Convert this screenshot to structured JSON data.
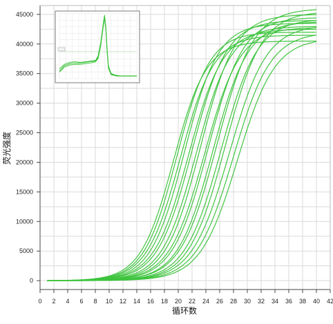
{
  "chart_data": [
    {
      "type": "line",
      "title": "",
      "xlabel": "循环数",
      "ylabel": "荧光强度",
      "xlim": [
        0,
        42
      ],
      "ylim": [
        -1500,
        46500
      ],
      "x_ticks": [
        0,
        2,
        4,
        6,
        8,
        10,
        12,
        14,
        16,
        18,
        20,
        22,
        24,
        26,
        28,
        30,
        32,
        34,
        36,
        38,
        40,
        42
      ],
      "y_ticks": [
        0,
        5000,
        10000,
        15000,
        20000,
        25000,
        30000,
        35000,
        40000,
        45000
      ],
      "grid": true,
      "legend": "none",
      "line_color": "#3fc43f",
      "x_range_of_series": [
        1,
        40
      ],
      "series": [
        {
          "midpoint": 19.3,
          "slope": 0.42,
          "plateau": 40500
        },
        {
          "midpoint": 19.8,
          "slope": 0.42,
          "plateau": 42000
        },
        {
          "midpoint": 20.3,
          "slope": 0.41,
          "plateau": 41500
        },
        {
          "midpoint": 20.9,
          "slope": 0.41,
          "plateau": 43500
        },
        {
          "midpoint": 21.5,
          "slope": 0.4,
          "plateau": 42500
        },
        {
          "midpoint": 22.0,
          "slope": 0.4,
          "plateau": 44000
        },
        {
          "midpoint": 22.6,
          "slope": 0.4,
          "plateau": 43000
        },
        {
          "midpoint": 23.2,
          "slope": 0.4,
          "plateau": 45000
        },
        {
          "midpoint": 23.8,
          "slope": 0.39,
          "plateau": 42800
        },
        {
          "midpoint": 24.3,
          "slope": 0.39,
          "plateau": 44500
        },
        {
          "midpoint": 25.0,
          "slope": 0.39,
          "plateau": 43800
        },
        {
          "midpoint": 25.6,
          "slope": 0.38,
          "plateau": 46000
        },
        {
          "midpoint": 26.2,
          "slope": 0.38,
          "plateau": 44200
        },
        {
          "midpoint": 26.8,
          "slope": 0.38,
          "plateau": 45500
        },
        {
          "midpoint": 27.4,
          "slope": 0.37,
          "plateau": 43200
        },
        {
          "midpoint": 28.0,
          "slope": 0.37,
          "plateau": 42000
        },
        {
          "midpoint": 28.6,
          "slope": 0.37,
          "plateau": 41000
        }
      ]
    },
    {
      "type": "line",
      "title": "",
      "description_of_inset": "melt curve inset",
      "grid": true,
      "line_color": "#3fc43f",
      "legend_box": true,
      "x_points": [
        0,
        4,
        8,
        12,
        16,
        20,
        24,
        28,
        30,
        32,
        34,
        35,
        36,
        37,
        38,
        40,
        44,
        48,
        52,
        56,
        60
      ],
      "series": [
        {
          "values": [
            0.15,
            0.22,
            0.25,
            0.26,
            0.25,
            0.26,
            0.27,
            0.28,
            0.35,
            0.55,
            0.85,
            0.98,
            0.8,
            0.45,
            0.2,
            0.08,
            0.05,
            0.04,
            0.04,
            0.04,
            0.04
          ]
        },
        {
          "values": [
            0.12,
            0.2,
            0.23,
            0.24,
            0.24,
            0.25,
            0.26,
            0.27,
            0.33,
            0.52,
            0.82,
            0.96,
            0.78,
            0.43,
            0.18,
            0.07,
            0.05,
            0.04,
            0.04,
            0.04,
            0.04
          ]
        },
        {
          "values": [
            0.1,
            0.18,
            0.21,
            0.22,
            0.22,
            0.23,
            0.24,
            0.26,
            0.31,
            0.5,
            0.8,
            0.94,
            0.76,
            0.4,
            0.16,
            0.06,
            0.04,
            0.04,
            0.04,
            0.04,
            0.04
          ]
        }
      ]
    }
  ]
}
